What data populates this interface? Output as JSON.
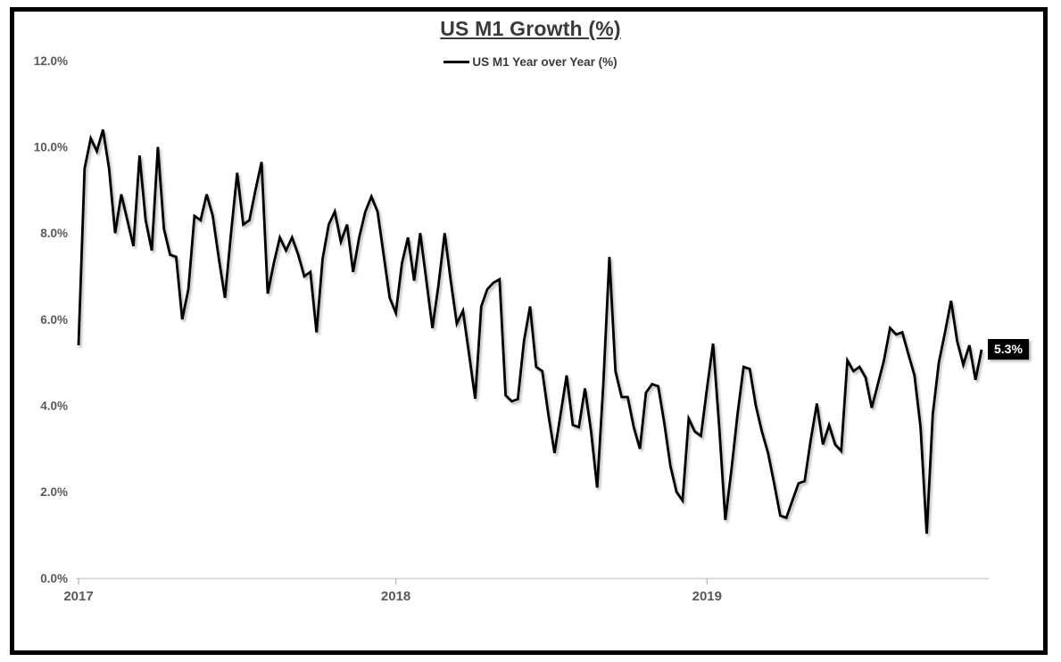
{
  "chart": {
    "colors": {
      "background": "#ffffff",
      "frame_border": "#000000",
      "title_text": "#3a3a3a",
      "axis_text": "#595959",
      "axis_line": "#d3d3d3",
      "series_line": "#000000",
      "annotation_bg": "#000000",
      "annotation_fg": "#ffffff"
    }
  },
  "chart_data": {
    "type": "line",
    "title": "US M1 Growth (%)",
    "xlabel": "",
    "ylabel": "",
    "ylim": [
      0,
      12
    ],
    "grid": false,
    "legend_position": "top-center",
    "x_unit": "weekly observations, Jan 2017 - Nov 2019",
    "yticks": [
      {
        "value": 0,
        "label": "0.0%"
      },
      {
        "value": 2,
        "label": "2.0%"
      },
      {
        "value": 4,
        "label": "4.0%"
      },
      {
        "value": 6,
        "label": "6.0%"
      },
      {
        "value": 8,
        "label": "8.0%"
      },
      {
        "value": 10,
        "label": "10.0%"
      },
      {
        "value": 12,
        "label": "12.0%"
      }
    ],
    "xticks": [
      {
        "index": 0,
        "label": "2017"
      },
      {
        "index": 52,
        "label": "2018"
      },
      {
        "index": 103,
        "label": "2019"
      }
    ],
    "last_point_label": "5.3%",
    "series": [
      {
        "name": "US M1 Year over Year (%)",
        "color": "#000000",
        "values": [
          5.4,
          9.5,
          10.2,
          9.9,
          10.4,
          9.5,
          8.0,
          8.9,
          8.3,
          7.7,
          9.8,
          8.3,
          7.6,
          10.0,
          8.1,
          7.5,
          7.45,
          6.0,
          6.7,
          8.4,
          8.3,
          8.9,
          8.4,
          7.4,
          6.5,
          8.0,
          9.4,
          8.2,
          8.3,
          9.0,
          9.65,
          6.6,
          7.3,
          7.9,
          7.6,
          7.9,
          7.5,
          7.0,
          7.1,
          5.7,
          7.4,
          8.2,
          8.5,
          7.8,
          8.2,
          7.1,
          7.9,
          8.5,
          8.85,
          8.5,
          7.5,
          6.5,
          6.15,
          7.3,
          7.9,
          6.9,
          8.0,
          6.9,
          5.8,
          6.8,
          8.0,
          6.9,
          5.9,
          6.2,
          5.2,
          4.16,
          6.3,
          6.7,
          6.85,
          6.93,
          4.24,
          4.1,
          4.15,
          5.5,
          6.3,
          4.9,
          4.8,
          3.8,
          2.9,
          3.8,
          4.7,
          3.55,
          3.5,
          4.4,
          3.4,
          2.1,
          4.5,
          7.45,
          4.8,
          4.2,
          4.2,
          3.5,
          3.0,
          4.3,
          4.5,
          4.45,
          3.6,
          2.6,
          2.0,
          1.8,
          3.7,
          3.4,
          3.3,
          4.4,
          5.44,
          3.5,
          1.35,
          2.5,
          3.8,
          4.9,
          4.85,
          4.0,
          3.4,
          2.9,
          2.2,
          1.45,
          1.4,
          1.8,
          2.2,
          2.25,
          3.2,
          4.05,
          3.1,
          3.55,
          3.1,
          2.95,
          5.05,
          4.8,
          4.9,
          4.65,
          3.95,
          4.5,
          5.05,
          5.8,
          5.65,
          5.7,
          5.2,
          4.7,
          3.5,
          1.03,
          3.8,
          5.0,
          5.7,
          6.43,
          5.5,
          4.95,
          5.4,
          4.6,
          5.3
        ]
      }
    ]
  }
}
